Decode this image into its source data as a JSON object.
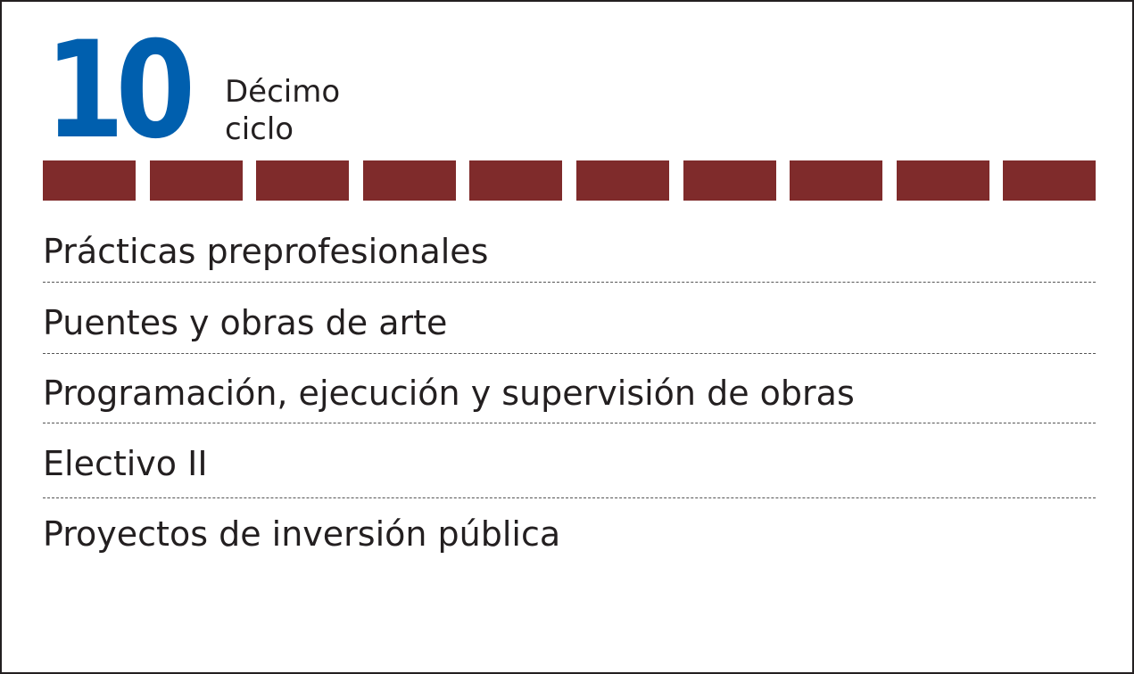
{
  "header": {
    "number": "10",
    "label_line1": "Décimo",
    "label_line2": "ciclo"
  },
  "colors": {
    "accent_blue": "#005fae",
    "segment_red": "#7f2b2b",
    "text": "#231f20"
  },
  "progress": {
    "completed_segments": 10,
    "total_segments": 10
  },
  "courses": [
    "Prácticas preprofesionales",
    "Puentes y obras de arte",
    "Programación, ejecución y supervisión de obras",
    "Electivo II",
    "Proyectos de inversión pública"
  ]
}
